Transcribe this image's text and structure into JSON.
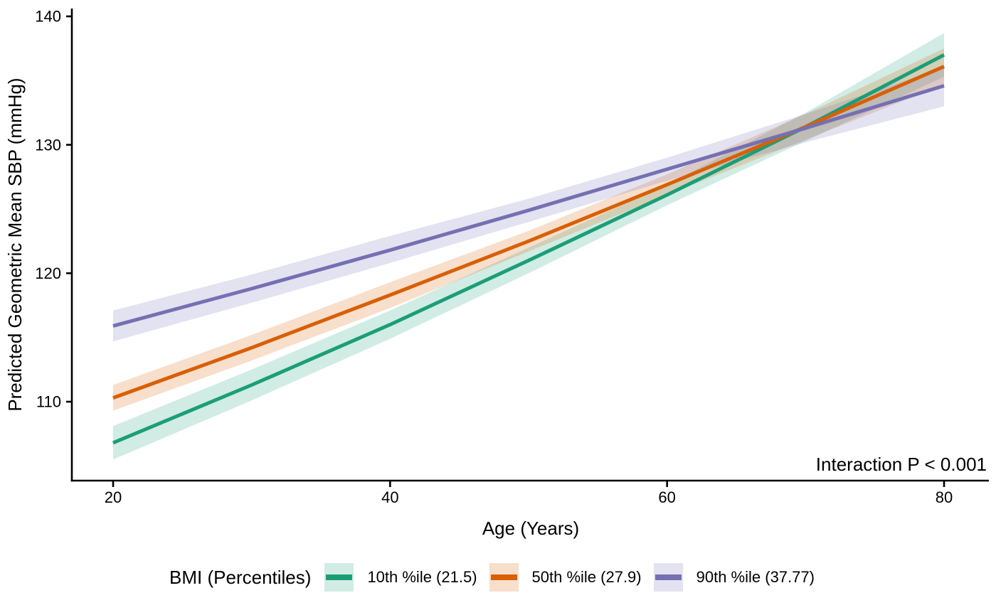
{
  "chart_data": {
    "type": "line",
    "title": "",
    "xlabel": "Age (Years)",
    "ylabel": "Predicted Geometric Mean SBP (mmHg)",
    "annotation": "Interaction P < 0.001",
    "legend_title": "BMI (Percentiles)",
    "legend_position": "bottom",
    "grid": false,
    "axis_color": "#000000",
    "x_ticks": [
      20,
      40,
      60,
      80
    ],
    "y_ticks": [
      110,
      120,
      130,
      140
    ],
    "xlim": [
      17,
      83
    ],
    "ylim": [
      104,
      140.6
    ],
    "x": [
      20,
      30,
      40,
      50,
      60,
      70,
      80
    ],
    "series": [
      {
        "name": "10th %ile (21.5)",
        "color": "#1B9E77",
        "band_color": "rgba(27,158,119,0.2)",
        "y": [
          106.8,
          111.3,
          116.0,
          121.0,
          126.1,
          131.4,
          137.0
        ],
        "ci_low": [
          105.5,
          110.1,
          114.9,
          120.0,
          125.3,
          130.3,
          135.3
        ],
        "ci_high": [
          108.1,
          112.5,
          117.1,
          122.0,
          126.9,
          132.5,
          138.7
        ]
      },
      {
        "name": "50th %ile (27.9)",
        "color": "#D95F02",
        "band_color": "rgba(217,95,2,0.2)",
        "y": [
          110.3,
          114.2,
          118.3,
          122.5,
          126.9,
          131.4,
          136.1
        ],
        "ci_low": [
          109.3,
          113.2,
          117.3,
          121.7,
          126.1,
          130.4,
          134.7
        ],
        "ci_high": [
          111.3,
          115.2,
          119.3,
          123.3,
          127.7,
          132.4,
          137.5
        ]
      },
      {
        "name": "90th %ile (37.77)",
        "color": "#7570B3",
        "band_color": "rgba(117,112,179,0.2)",
        "y": [
          115.9,
          118.8,
          121.8,
          124.9,
          128.1,
          131.3,
          134.6
        ],
        "ci_low": [
          114.7,
          117.7,
          120.8,
          124.0,
          127.2,
          130.2,
          133.0
        ],
        "ci_high": [
          117.1,
          119.9,
          122.9,
          125.8,
          129.0,
          132.4,
          136.0
        ]
      }
    ]
  }
}
